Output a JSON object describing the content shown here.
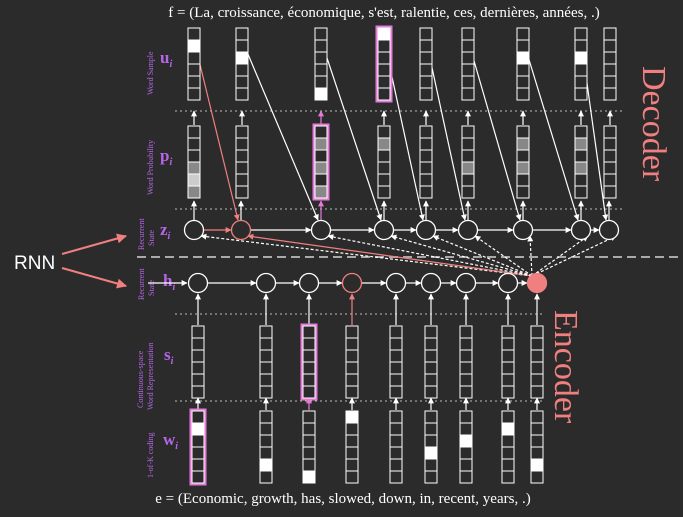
{
  "decoder_sentence": "f = (La, croissance, économique, s'est, ralentie, ces, dernières, années, .)",
  "encoder_sentence": "e = (Economic, growth, has, slowed, down, in, recent, years, .)",
  "decoder_title": "Decoder",
  "encoder_title": "Encoder",
  "rnn_label": "RNN",
  "rows": {
    "word_sample": {
      "side": "Word Sample",
      "sym": "u",
      "sub": "i"
    },
    "word_probability": {
      "side": "Word Probability",
      "sym": "p",
      "sub": "i"
    },
    "decoder_state": {
      "side": "Recurrent State",
      "sym": "z",
      "sub": "i"
    },
    "encoder_state": {
      "side": "Recurrent State",
      "sym": "h",
      "sub": "i"
    },
    "continuous_rep": {
      "side": "Continuous-space Word Representation",
      "sym": "s",
      "sub": "i"
    },
    "one_of_k": {
      "side": "1-of-K coding",
      "sym": "w",
      "sub": "i"
    }
  },
  "colors": {
    "background": "#2b2b2b",
    "foreground": "#ffffff",
    "highlight_pink": "#e57bd9",
    "accent_salmon": "#f08080",
    "label_purple": "#b565e8"
  }
}
